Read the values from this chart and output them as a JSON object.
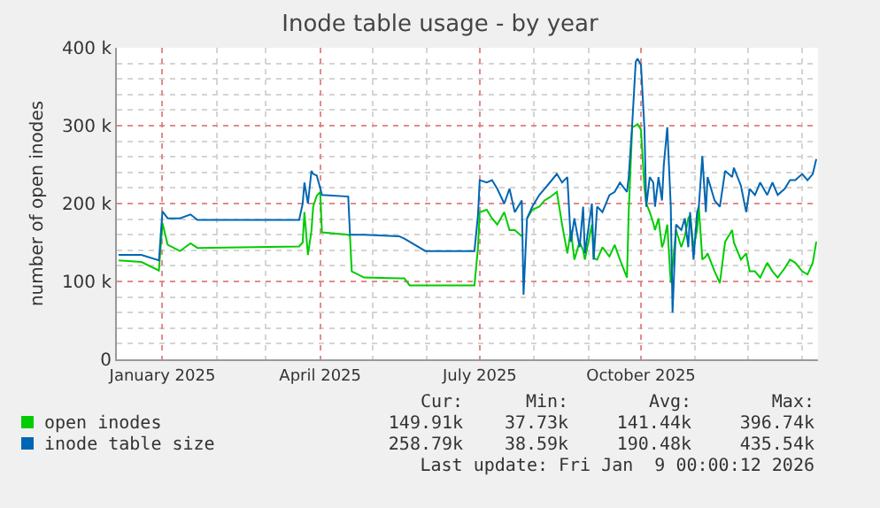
{
  "chart_data": {
    "type": "line",
    "title": "Inode table usage - by year",
    "ylabel": "number of open inodes",
    "x": [
      "2024-12-07",
      "2024-12-20",
      "2024-12-30",
      "2025-01-01",
      "2025-01-04",
      "2025-01-11",
      "2025-01-17",
      "2025-01-21",
      "2025-03-20",
      "2025-03-22",
      "2025-03-23",
      "2025-03-25",
      "2025-03-27",
      "2025-03-28",
      "2025-03-30",
      "2025-04-01",
      "2025-04-02",
      "2025-04-17",
      "2025-04-18",
      "2025-04-19",
      "2025-04-26",
      "2025-05-16",
      "2025-05-19",
      "2025-05-22",
      "2025-05-31",
      "2025-06-28",
      "2025-06-30",
      "2025-07-01",
      "2025-07-05",
      "2025-07-08",
      "2025-07-11",
      "2025-07-15",
      "2025-07-18",
      "2025-07-21",
      "2025-07-25",
      "2025-07-26",
      "2025-07-28",
      "2025-07-31",
      "2025-08-04",
      "2025-08-07",
      "2025-08-10",
      "2025-08-14",
      "2025-08-17",
      "2025-08-20",
      "2025-08-22",
      "2025-08-24",
      "2025-08-27",
      "2025-08-29",
      "2025-08-30",
      "2025-09-03",
      "2025-09-04",
      "2025-09-06",
      "2025-09-09",
      "2025-09-13",
      "2025-09-16",
      "2025-09-19",
      "2025-09-23",
      "2025-09-24",
      "2025-09-26",
      "2025-09-28",
      "2025-09-29",
      "2025-10-01",
      "2025-10-03",
      "2025-10-04",
      "2025-10-06",
      "2025-10-08",
      "2025-10-09",
      "2025-10-11",
      "2025-10-13",
      "2025-10-14",
      "2025-10-16",
      "2025-10-18",
      "2025-10-19",
      "2025-10-21",
      "2025-10-24",
      "2025-10-26",
      "2025-10-28",
      "2025-10-29",
      "2025-10-31",
      "2025-11-02",
      "2025-11-03",
      "2025-11-05",
      "2025-11-07",
      "2025-11-08",
      "2025-11-12",
      "2025-11-15",
      "2025-11-18",
      "2025-11-22",
      "2025-11-23",
      "2025-11-27",
      "2025-11-30",
      "2025-12-02",
      "2025-12-05",
      "2025-12-08",
      "2025-12-12",
      "2025-12-15",
      "2025-12-18",
      "2025-12-22",
      "2025-12-25",
      "2025-12-28",
      "2026-01-01",
      "2026-01-04",
      "2026-01-07",
      "2026-01-09"
    ],
    "series": [
      {
        "name": "open inodes",
        "color": "#00cc00",
        "values": [
          127000,
          125000,
          114000,
          175000,
          147000,
          139000,
          149000,
          143000,
          145000,
          150000,
          189000,
          134000,
          165000,
          196000,
          210000,
          215000,
          163000,
          160000,
          158000,
          113000,
          105000,
          104000,
          104000,
          95000,
          95000,
          95000,
          143000,
          189000,
          192000,
          181000,
          173000,
          189000,
          166000,
          166000,
          158000,
          null,
          181000,
          192000,
          196000,
          204000,
          208000,
          215000,
          173000,
          136000,
          166000,
          128000,
          151000,
          140000,
          128000,
          173000,
          130000,
          128000,
          144000,
          132000,
          147000,
          128000,
          105000,
          189000,
          298000,
          300000,
          302000,
          295000,
          219000,
          200000,
          189000,
          175000,
          166000,
          181000,
          144000,
          150000,
          173000,
          98000,
          120000,
          166000,
          144000,
          158000,
          181000,
          185000,
          144000,
          166000,
          196000,
          128000,
          132000,
          136000,
          113000,
          98000,
          151000,
          166000,
          150000,
          128000,
          136000,
          113000,
          113000,
          105000,
          124000,
          113000,
          105000,
          117000,
          128000,
          124000,
          113000,
          109000,
          124000,
          151000
        ]
      },
      {
        "name": "inode table size",
        "color": "#0066b3",
        "values": [
          134000,
          134000,
          127000,
          190000,
          181000,
          181000,
          186000,
          179000,
          179000,
          200000,
          227000,
          200000,
          242000,
          238000,
          236000,
          220000,
          211000,
          209000,
          160000,
          160000,
          160000,
          158000,
          155000,
          151000,
          139000,
          139000,
          185000,
          230000,
          227000,
          230000,
          219000,
          200000,
          219000,
          189000,
          204000,
          83000,
          181000,
          196000,
          211000,
          219000,
          227000,
          238000,
          227000,
          234000,
          151000,
          181000,
          144000,
          196000,
          136000,
          200000,
          128000,
          196000,
          189000,
          211000,
          215000,
          227000,
          215000,
          234000,
          302000,
          382000,
          386000,
          378000,
          295000,
          196000,
          234000,
          227000,
          196000,
          234000,
          204000,
          249000,
          298000,
          196000,
          60000,
          173000,
          166000,
          181000,
          144000,
          189000,
          128000,
          189000,
          196000,
          261000,
          189000,
          234000,
          204000,
          196000,
          242000,
          234000,
          246000,
          223000,
          189000,
          219000,
          211000,
          227000,
          211000,
          227000,
          211000,
          219000,
          230000,
          230000,
          238000,
          230000,
          238000,
          257000
        ]
      }
    ],
    "xlim": [
      "2024-12-06",
      "2026-01-10"
    ],
    "xticks": [
      {
        "value": "2025-01-01",
        "label": "January 2025"
      },
      {
        "value": "2025-04-01",
        "label": "April 2025"
      },
      {
        "value": "2025-07-01",
        "label": "July 2025"
      },
      {
        "value": "2025-10-01",
        "label": "October 2025"
      }
    ],
    "ylim": [
      0,
      400000
    ],
    "yticks": [
      {
        "value": 0,
        "label": "0"
      },
      {
        "value": 100000,
        "label": "100 k"
      },
      {
        "value": 200000,
        "label": "200 k"
      },
      {
        "value": 300000,
        "label": "300 k"
      },
      {
        "value": 400000,
        "label": "400 k"
      }
    ],
    "grid": true,
    "legend": "bottom",
    "marker": "none",
    "line_style": "solid",
    "annotations": [
      "Cur:",
      "Min:",
      "Avg:",
      "Max:",
      "149.91k",
      "37.73k",
      "141.44k",
      "396.74k",
      "258.79k",
      "38.59k",
      "190.48k",
      "435.54k",
      "Last update: Fri Jan  9 00:00:12 2026"
    ]
  }
}
